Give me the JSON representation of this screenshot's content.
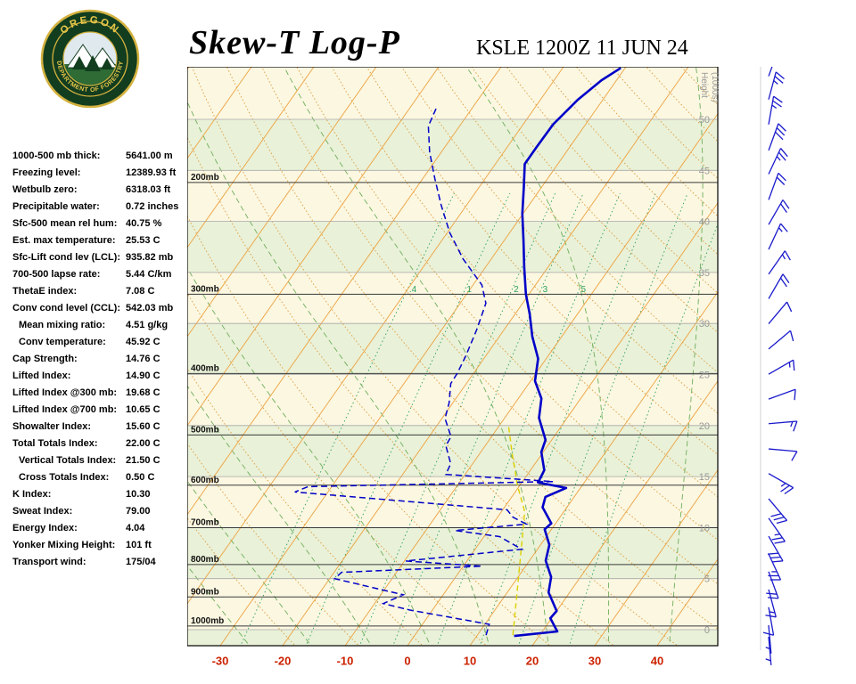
{
  "header": {
    "title": "Skew-T Log-P",
    "station_line": "KSLE 1200Z 11 JUN 24",
    "logo_text_top": "OREGON",
    "logo_text_bottom": "DEPARTMENT OF FORESTRY"
  },
  "indices": [
    {
      "label": "1000-500 mb thick:",
      "value": "5641.00 m"
    },
    {
      "label": "Freezing level:",
      "value": "12389.93 ft"
    },
    {
      "label": "Wetbulb zero:",
      "value": "6318.03 ft"
    },
    {
      "label": "Precipitable water:",
      "value": "0.72 inches"
    },
    {
      "label": "Sfc-500 mean rel hum:",
      "value": "40.75 %"
    },
    {
      "label": "Est. max temperature:",
      "value": "25.53 C"
    },
    {
      "label": "Sfc-Lift cond lev (LCL):",
      "value": "935.82 mb"
    },
    {
      "label": "700-500 lapse rate:",
      "value": "5.44 C/km"
    },
    {
      "label": "ThetaE index:",
      "value": "7.08 C"
    },
    {
      "label": "Conv cond level (CCL):",
      "value": "542.03 mb"
    },
    {
      "label": "Mean mixing ratio:",
      "value": "4.51 g/kg",
      "indent": true
    },
    {
      "label": "Conv temperature:",
      "value": "45.92 C",
      "indent": true
    },
    {
      "label": "Cap Strength:",
      "value": "14.76 C"
    },
    {
      "label": "Lifted Index:",
      "value": "14.90 C"
    },
    {
      "label": "Lifted Index @300 mb:",
      "value": "19.68 C"
    },
    {
      "label": "Lifted Index @700 mb:",
      "value": "10.65 C"
    },
    {
      "label": "Showalter Index:",
      "value": "15.60 C"
    },
    {
      "label": "Total Totals Index:",
      "value": "22.00 C"
    },
    {
      "label": "Vertical Totals Index:",
      "value": "21.50 C",
      "indent": true
    },
    {
      "label": "Cross Totals Index:",
      "value": "0.50 C",
      "indent": true
    },
    {
      "label": "K Index:",
      "value": "10.30"
    },
    {
      "label": "Sweat Index:",
      "value": "79.00"
    },
    {
      "label": "Energy Index:",
      "value": "4.04"
    },
    {
      "label": "Yonker Mixing Height:",
      "value": "101 ft"
    },
    {
      "label": "Transport wind:",
      "value": "175/04"
    }
  ],
  "chart_data": {
    "type": "skewt_log_p",
    "pressure_ticks": [
      200,
      300,
      400,
      500,
      600,
      700,
      800,
      900,
      1000
    ],
    "pressure_unit": "mb",
    "temp_ticks": [
      -30,
      -20,
      -10,
      0,
      10,
      20,
      30,
      40
    ],
    "height_axis": {
      "label": "Height",
      "sublabel": "(1000s)",
      "ticks": [
        0,
        5,
        10,
        15,
        20,
        25,
        30,
        35,
        40,
        45,
        50
      ]
    },
    "isotherms": {
      "min": -110,
      "max": 50,
      "step": 10
    },
    "dry_adiabats_theta_k": {
      "min": 250,
      "max": 450,
      "step": 10
    },
    "moist_adiabats_t0_c": [
      -30,
      -20,
      -10,
      0,
      10,
      20,
      30,
      40
    ],
    "mixing_ratio_gkg": [
      0.4,
      1,
      2,
      3,
      5,
      8,
      12,
      20
    ],
    "mixing_ratio_labels": [
      {
        "w": 0.4,
        "text": ".4"
      },
      {
        "w": 1,
        "text": "1"
      },
      {
        "w": 2,
        "text": "2"
      },
      {
        "w": 3,
        "text": "3"
      },
      {
        "w": 5,
        "text": "5"
      }
    ],
    "temperature_profile": [
      [
        1037,
        16.0
      ],
      [
        1020,
        22.4
      ],
      [
        972,
        19.8
      ],
      [
        947,
        20.0
      ],
      [
        885,
        16.6
      ],
      [
        837,
        15.3
      ],
      [
        789,
        12.6
      ],
      [
        745,
        11.4
      ],
      [
        704,
        8.9
      ],
      [
        689,
        9.3
      ],
      [
        650,
        6.1
      ],
      [
        626,
        5.4
      ],
      [
        606,
        7.7
      ],
      [
        594,
        2.6
      ],
      [
        568,
        2.2
      ],
      [
        532,
        -0.3
      ],
      [
        509,
        -1.0
      ],
      [
        470,
        -4.5
      ],
      [
        438,
        -6.3
      ],
      [
        411,
        -9.3
      ],
      [
        379,
        -11.3
      ],
      [
        350,
        -14.7
      ],
      [
        322,
        -17.7
      ],
      [
        300,
        -20.5
      ],
      [
        272,
        -23.8
      ],
      [
        247,
        -26.9
      ],
      [
        224,
        -30.1
      ],
      [
        203,
        -32.9
      ],
      [
        187,
        -35.3
      ],
      [
        176,
        -35.3
      ],
      [
        162,
        -35.2
      ],
      [
        148,
        -34.0
      ],
      [
        138,
        -32.4
      ],
      [
        132,
        -30.7
      ]
    ],
    "dewpoint_profile": [
      [
        1034,
        11.4
      ],
      [
        994,
        10.7
      ],
      [
        944,
        -3.6
      ],
      [
        922,
        -8.6
      ],
      [
        893,
        -6.4
      ],
      [
        842,
        -19.2
      ],
      [
        823,
        -18.8
      ],
      [
        805,
        3.0
      ],
      [
        790,
        -9.8
      ],
      [
        757,
        7.5
      ],
      [
        723,
        2.5
      ],
      [
        707,
        -5.3
      ],
      [
        691,
        5.4
      ],
      [
        674,
        2.5
      ],
      [
        656,
        0.7
      ],
      [
        615,
        -35.3
      ],
      [
        603,
        -33.8
      ],
      [
        592,
        4.9
      ],
      [
        577,
        -13.1
      ],
      [
        555,
        -13.5
      ],
      [
        520,
        -16.3
      ],
      [
        503,
        -16.5
      ],
      [
        471,
        -19.5
      ],
      [
        445,
        -20.6
      ],
      [
        415,
        -22.5
      ],
      [
        400,
        -22.6
      ],
      [
        375,
        -23.2
      ],
      [
        341,
        -24.4
      ],
      [
        310,
        -25.9
      ],
      [
        290,
        -28.6
      ],
      [
        264,
        -34.5
      ],
      [
        240,
        -39.6
      ],
      [
        217,
        -44.1
      ],
      [
        197,
        -48.1
      ],
      [
        179,
        -51.9
      ],
      [
        163,
        -55.0
      ],
      [
        152,
        -55.8
      ]
    ],
    "parcel_profile": [
      [
        1034,
        15.7
      ],
      [
        870,
        11.1
      ],
      [
        716,
        5.9
      ],
      [
        660,
        3.7
      ],
      [
        600,
        -0.4
      ],
      [
        535,
        -4.8
      ],
      [
        485,
        -8.4
      ]
    ],
    "wind_barbs": [
      [
        136,
        20,
        30
      ],
      [
        148,
        15,
        25
      ],
      [
        162,
        10,
        25
      ],
      [
        178,
        20,
        30
      ],
      [
        194,
        25,
        25
      ],
      [
        213,
        20,
        20
      ],
      [
        233,
        30,
        20
      ],
      [
        255,
        25,
        15
      ],
      [
        279,
        35,
        15
      ],
      [
        305,
        30,
        20
      ],
      [
        334,
        40,
        10
      ],
      [
        366,
        50,
        10
      ],
      [
        401,
        60,
        15
      ],
      [
        439,
        70,
        10
      ],
      [
        480,
        85,
        15
      ],
      [
        526,
        95,
        10
      ],
      [
        575,
        120,
        25
      ],
      [
        630,
        140,
        30
      ],
      [
        676,
        145,
        25
      ],
      [
        722,
        150,
        30
      ],
      [
        770,
        155,
        25
      ],
      [
        821,
        160,
        20
      ],
      [
        876,
        165,
        15
      ],
      [
        934,
        170,
        10
      ],
      [
        997,
        175,
        5
      ],
      [
        1040,
        175,
        5
      ]
    ],
    "colors": {
      "band_cream": "#fbf7e1",
      "band_green": "#e9f1d8",
      "isotherm": "#eda23f",
      "dry_adiabat": "#e09a3a",
      "moist_adiabat": "#6fae5c",
      "mixing_ratio": "#2ca05f",
      "pressure_line": "#3a3a3a",
      "height_line": "#a8a8a8",
      "temperature": "#0000c8",
      "dewpoint": "#0000c8",
      "parcel": "#ddd000",
      "wind_barb": "#1a1acc",
      "temp_axis_label": "#cc2200",
      "height_label": "#999999",
      "pressure_label": "#111111",
      "border": "#000000"
    }
  }
}
